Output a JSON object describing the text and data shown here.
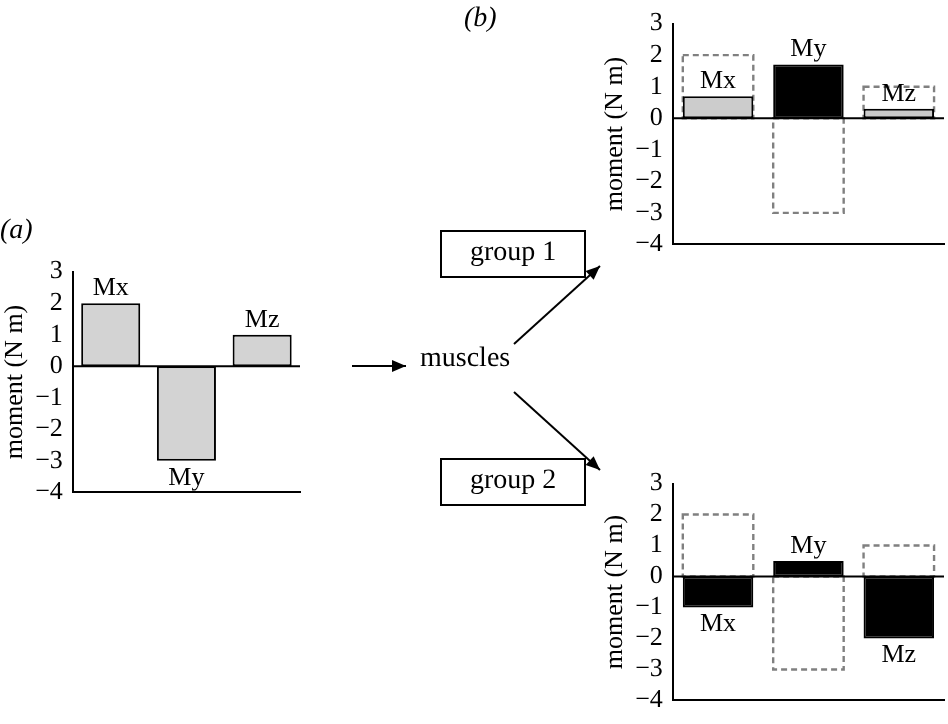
{
  "chart_data": [
    {
      "type": "bar",
      "title": "(a)",
      "categories": [
        "Mx",
        "My",
        "Mz"
      ],
      "values": [
        2,
        -3,
        1
      ],
      "color": "#d3d3d3",
      "ylim": [
        -4,
        3
      ],
      "yticks": [
        -4,
        -3,
        -2,
        -1,
        0,
        1,
        2,
        3
      ],
      "ylabel": "moment (N m)",
      "tick_labels": "y"
    },
    {
      "type": "bar",
      "title": "(b)",
      "categories": [
        "Mx",
        "My",
        "Mz"
      ],
      "series": [
        {
          "color": "#808080",
          "line_style": "dashed",
          "values": [
            2,
            -3,
            1
          ]
        },
        {
          "color": "#000000",
          "colors": [
            "#cccccc",
            "#000000",
            "#cccccc"
          ],
          "values": [
            0.7,
            1.7,
            0.3
          ]
        }
      ],
      "ylim": [
        -4,
        3
      ],
      "yticks": [
        -4,
        -3,
        -2,
        -1,
        0,
        1,
        2,
        3
      ],
      "ylabel": "moment (N m)",
      "tick_labels": "y"
    },
    {
      "type": "bar",
      "categories": [
        "Mx",
        "My",
        "Mz"
      ],
      "series": [
        {
          "color": "#808080",
          "line_style": "dashed",
          "values": [
            2,
            -3,
            1
          ]
        },
        {
          "color": "#000000",
          "values": [
            -1,
            0.5,
            -2
          ]
        }
      ],
      "ylim": [
        -4,
        3
      ],
      "yticks": [
        -4,
        -3,
        -2,
        -1,
        0,
        1,
        2,
        3
      ],
      "ylabel": "moment (N m)",
      "tick_labels": "y"
    },
    {
      "type": "other",
      "annotations": [
        "muscles",
        "group 1",
        "group 2"
      ]
    }
  ]
}
